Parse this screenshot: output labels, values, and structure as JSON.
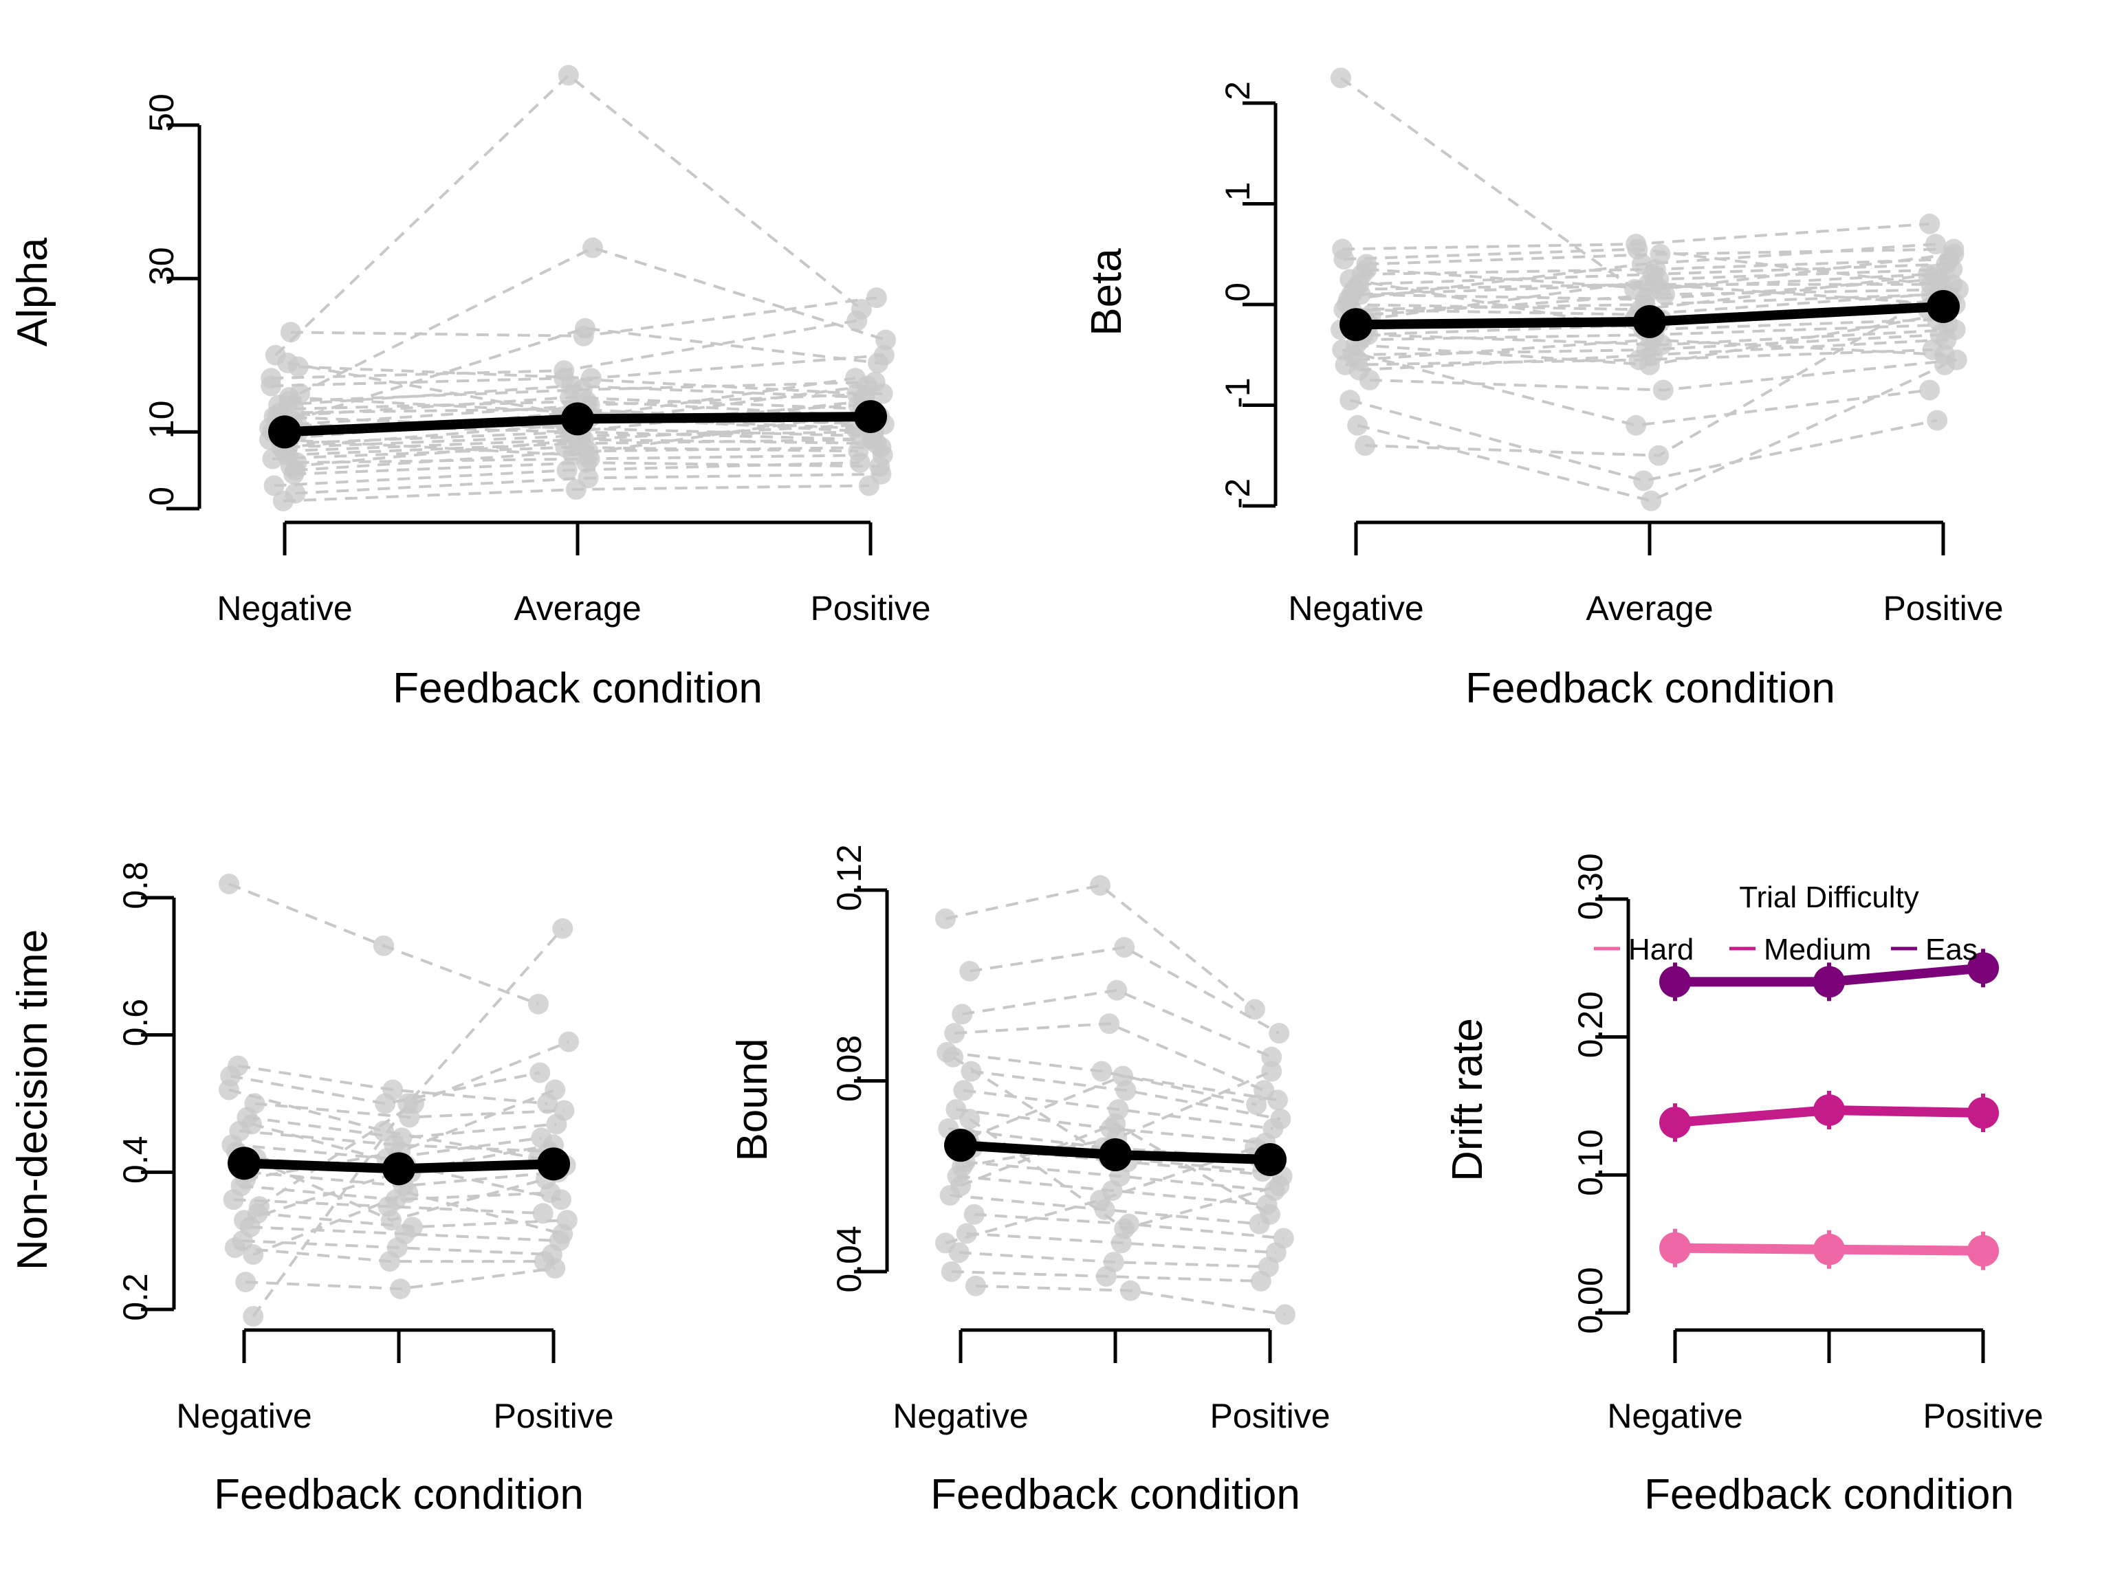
{
  "colors": {
    "individual": "#c8c8c8",
    "mean": "#000000",
    "hard": "#f067a6",
    "medium": "#c51b8a",
    "easy": "#7a0177"
  },
  "chart_data": [
    {
      "type": "line",
      "xlabel": "Feedback condition",
      "ylabel": "Alpha",
      "categories": [
        "Negative",
        "Average",
        "Positive"
      ],
      "ylim": [
        0,
        50
      ],
      "yticks": [
        "0",
        "10",
        "30",
        "50"
      ],
      "yticks_values": [
        0,
        10,
        30,
        50
      ],
      "mean": [
        10.0,
        11.7,
        12.0
      ],
      "individual_series": [
        [
          9.0,
          12.0,
          10.5
        ],
        [
          13.0,
          14.0,
          12.0
        ],
        [
          7.0,
          8.5,
          9.0
        ],
        [
          11.0,
          10.0,
          14.0
        ],
        [
          16.0,
          17.0,
          15.0
        ],
        [
          5.0,
          7.5,
          8.0
        ],
        [
          8.0,
          9.5,
          10.0
        ],
        [
          12.5,
          13.0,
          11.0
        ],
        [
          10.0,
          11.0,
          13.5
        ],
        [
          6.0,
          6.5,
          7.0
        ],
        [
          14.0,
          15.5,
          16.5
        ],
        [
          9.5,
          12.5,
          12.0
        ],
        [
          3.0,
          5.0,
          6.0
        ],
        [
          18.5,
          17.0,
          20.0
        ],
        [
          23.0,
          22.5,
          27.5
        ],
        [
          1.0,
          2.5,
          3.0
        ],
        [
          20.0,
          56.5,
          26.0
        ],
        [
          15.0,
          34.0,
          22.0
        ],
        [
          11.5,
          23.5,
          19.0
        ],
        [
          7.5,
          9.0,
          11.0
        ],
        [
          12.0,
          14.5,
          13.0
        ],
        [
          10.5,
          11.5,
          17.0
        ],
        [
          4.5,
          6.0,
          5.5
        ],
        [
          8.5,
          10.0,
          9.0
        ],
        [
          13.5,
          16.0,
          14.5
        ],
        [
          17.0,
          18.0,
          24.5
        ],
        [
          2.0,
          4.0,
          4.5
        ],
        [
          19.0,
          12.0,
          10.0
        ],
        [
          9.0,
          7.0,
          12.5
        ],
        [
          6.5,
          8.0,
          7.5
        ],
        [
          11.0,
          13.5,
          15.0
        ],
        [
          14.5,
          12.5,
          11.5
        ],
        [
          8.0,
          11.0,
          16.0
        ],
        [
          12.0,
          10.5,
          9.5
        ],
        [
          10.0,
          12.0,
          11.0
        ],
        [
          5.5,
          9.0,
          8.5
        ]
      ]
    },
    {
      "type": "line",
      "xlabel": "Feedback condition",
      "ylabel": "Beta",
      "categories": [
        "Negative",
        "Average",
        "Positive"
      ],
      "ylim": [
        -2,
        2
      ],
      "yticks": [
        "-2",
        "-1",
        "0",
        "1",
        "2"
      ],
      "yticks_values": [
        -2,
        -1,
        0,
        1,
        2
      ],
      "mean": [
        -0.2,
        -0.17,
        -0.02
      ],
      "individual_series": [
        [
          2.25,
          0.15,
          0.3
        ],
        [
          -1.4,
          -1.5,
          0.2
        ],
        [
          -1.2,
          -1.95,
          -0.6
        ],
        [
          -0.95,
          -1.75,
          -1.15
        ],
        [
          0.55,
          0.6,
          0.8
        ],
        [
          0.4,
          0.5,
          0.55
        ],
        [
          0.2,
          0.3,
          0.4
        ],
        [
          0.1,
          0.05,
          0.25
        ],
        [
          -0.05,
          -0.1,
          0.1
        ],
        [
          -0.2,
          -0.15,
          0.0
        ],
        [
          -0.35,
          -0.3,
          -0.2
        ],
        [
          -0.5,
          -0.45,
          -0.3
        ],
        [
          -0.6,
          -0.55,
          -0.45
        ],
        [
          -0.75,
          -0.85,
          -0.55
        ],
        [
          0.3,
          0.35,
          0.45
        ],
        [
          0.15,
          0.2,
          0.2
        ],
        [
          0.0,
          -0.05,
          0.3
        ],
        [
          -0.1,
          0.1,
          0.15
        ],
        [
          -0.3,
          -0.2,
          0.05
        ],
        [
          -0.4,
          -0.6,
          -0.1
        ],
        [
          0.05,
          0.4,
          0.6
        ],
        [
          -0.25,
          -0.15,
          -0.05
        ],
        [
          -0.15,
          0.25,
          0.35
        ],
        [
          -0.55,
          -0.35,
          -0.5
        ],
        [
          0.25,
          -0.25,
          -0.15
        ],
        [
          -0.45,
          -1.2,
          -0.85
        ],
        [
          0.35,
          0.15,
          0.5
        ],
        [
          -0.65,
          -0.5,
          -0.35
        ],
        [
          -0.05,
          0.0,
          0.1
        ],
        [
          0.45,
          0.55,
          0.2
        ],
        [
          -0.3,
          -0.4,
          -0.25
        ],
        [
          0.1,
          0.2,
          0.0
        ]
      ]
    },
    {
      "type": "line",
      "xlabel": "Feedback condition",
      "ylabel": "Non-decision time",
      "categories": [
        "Negative",
        "",
        "Positive"
      ],
      "ylim": [
        0.2,
        0.8
      ],
      "yticks": [
        "0.2",
        "0.4",
        "0.6",
        "0.8"
      ],
      "yticks_values": [
        0.2,
        0.4,
        0.6,
        0.8
      ],
      "mean": [
        0.413,
        0.405,
        0.412
      ],
      "individual_series": [
        [
          0.82,
          0.73,
          0.645
        ],
        [
          0.19,
          0.5,
          0.755
        ],
        [
          0.24,
          0.23,
          0.26
        ],
        [
          0.555,
          0.52,
          0.5
        ],
        [
          0.54,
          0.5,
          0.545
        ],
        [
          0.5,
          0.48,
          0.49
        ],
        [
          0.48,
          0.45,
          0.47
        ],
        [
          0.46,
          0.44,
          0.43
        ],
        [
          0.44,
          0.42,
          0.45
        ],
        [
          0.42,
          0.4,
          0.41
        ],
        [
          0.4,
          0.38,
          0.4
        ],
        [
          0.38,
          0.36,
          0.37
        ],
        [
          0.36,
          0.35,
          0.34
        ],
        [
          0.34,
          0.32,
          0.33
        ],
        [
          0.32,
          0.31,
          0.3
        ],
        [
          0.3,
          0.29,
          0.28
        ],
        [
          0.29,
          0.27,
          0.27
        ],
        [
          0.35,
          0.5,
          0.59
        ],
        [
          0.47,
          0.41,
          0.36
        ],
        [
          0.33,
          0.4,
          0.44
        ],
        [
          0.43,
          0.33,
          0.39
        ],
        [
          0.52,
          0.46,
          0.42
        ],
        [
          0.28,
          0.37,
          0.31
        ],
        [
          0.39,
          0.43,
          0.52
        ]
      ]
    },
    {
      "type": "line",
      "xlabel": "Feedback condition",
      "ylabel": "Bound",
      "categories": [
        "Negative",
        "",
        "Positive"
      ],
      "ylim": [
        0.04,
        0.12
      ],
      "yticks": [
        "0.04",
        "0.08",
        "0.12"
      ],
      "yticks_values": [
        0.04,
        0.08,
        0.12
      ],
      "mean": [
        0.0665,
        0.0645,
        0.0635
      ],
      "individual_series": [
        [
          0.114,
          0.121,
          0.095
        ],
        [
          0.103,
          0.108,
          0.09
        ],
        [
          0.094,
          0.099,
          0.085
        ],
        [
          0.09,
          0.092,
          0.078
        ],
        [
          0.086,
          0.082,
          0.075
        ],
        [
          0.082,
          0.078,
          0.072
        ],
        [
          0.078,
          0.074,
          0.07
        ],
        [
          0.074,
          0.07,
          0.067
        ],
        [
          0.07,
          0.066,
          0.064
        ],
        [
          0.066,
          0.063,
          0.06
        ],
        [
          0.063,
          0.06,
          0.057
        ],
        [
          0.06,
          0.057,
          0.054
        ],
        [
          0.056,
          0.053,
          0.05
        ],
        [
          0.052,
          0.05,
          0.047
        ],
        [
          0.048,
          0.046,
          0.044
        ],
        [
          0.044,
          0.042,
          0.041
        ],
        [
          0.04,
          0.039,
          0.038
        ],
        [
          0.037,
          0.036,
          0.031
        ],
        [
          0.068,
          0.081,
          0.076
        ],
        [
          0.058,
          0.071,
          0.052
        ],
        [
          0.085,
          0.064,
          0.061
        ],
        [
          0.046,
          0.055,
          0.066
        ],
        [
          0.072,
          0.049,
          0.058
        ],
        [
          0.062,
          0.068,
          0.082
        ]
      ]
    },
    {
      "type": "line",
      "xlabel": "Feedback condition",
      "ylabel": "Drift rate",
      "categories": [
        "Negative",
        "",
        "Positive"
      ],
      "ylim": [
        0,
        0.3
      ],
      "yticks": [
        "0.00",
        "0.10",
        "0.20",
        "0.30"
      ],
      "yticks_values": [
        0,
        0.1,
        0.2,
        0.3
      ],
      "legend": {
        "title": "Trial Difficulty",
        "position": "top",
        "entries": [
          "Hard",
          "Medium",
          "Eas"
        ]
      },
      "series": [
        {
          "name": "Hard",
          "values": [
            0.047,
            0.046,
            0.045
          ],
          "color": "#f067a6"
        },
        {
          "name": "Medium",
          "values": [
            0.138,
            0.147,
            0.145
          ],
          "color": "#c51b8a"
        },
        {
          "name": "Eas",
          "values": [
            0.24,
            0.24,
            0.25
          ],
          "color": "#7a0177"
        }
      ]
    }
  ]
}
